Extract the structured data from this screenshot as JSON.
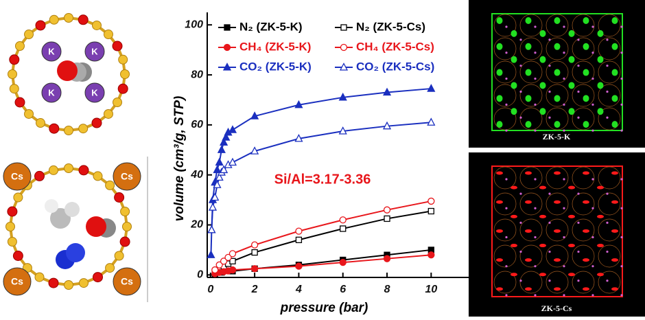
{
  "chart_data": {
    "type": "line",
    "xlabel": "pressure (bar)",
    "ylabel": "volume (cm³/g, STP)",
    "annotation": "Si/Al=3.17-3.36",
    "xlim": [
      -0.15,
      11.7
    ],
    "ylim": [
      -1,
      105
    ],
    "xticks": [
      0,
      2,
      4,
      6,
      8,
      10
    ],
    "yticks": [
      0,
      20,
      40,
      60,
      80,
      100
    ],
    "series": [
      {
        "name": "N₂ (ZK-5-K)",
        "color": "#000000",
        "marker": "square",
        "filled": true,
        "x": [
          0.2,
          0.5,
          1,
          2,
          4,
          6,
          8,
          10
        ],
        "values": [
          0.5,
          1,
          1.5,
          2.5,
          4,
          6,
          8,
          10
        ]
      },
      {
        "name": "N₂ (ZK-5-Cs)",
        "color": "#000000",
        "marker": "square",
        "filled": false,
        "x": [
          0.2,
          0.4,
          0.6,
          0.8,
          1,
          2,
          4,
          6,
          8,
          10
        ],
        "values": [
          1,
          2,
          3.5,
          4.5,
          5.5,
          9,
          14,
          18.5,
          22.5,
          25.5
        ]
      },
      {
        "name": "CH₄ (ZK-5-K)",
        "color": "#e8161b",
        "marker": "circle",
        "filled": true,
        "x": [
          0.2,
          0.4,
          0.6,
          0.8,
          1,
          2,
          4,
          6,
          8,
          10
        ],
        "values": [
          0.5,
          1,
          1.3,
          1.6,
          2,
          2.5,
          3.5,
          5,
          6.5,
          8
        ]
      },
      {
        "name": "CH₄ (ZK-5-Cs)",
        "color": "#e8161b",
        "marker": "circle",
        "filled": false,
        "x": [
          0.2,
          0.4,
          0.6,
          0.8,
          1,
          2,
          4,
          6,
          8,
          10
        ],
        "values": [
          2,
          4,
          5.5,
          7,
          8.5,
          12,
          17.5,
          22,
          26,
          29.5
        ]
      },
      {
        "name": "CO₂ (ZK-5-K)",
        "color": "#1a2fbf",
        "marker": "triangle",
        "filled": true,
        "x": [
          0.02,
          0.05,
          0.1,
          0.2,
          0.3,
          0.4,
          0.5,
          0.6,
          0.7,
          0.8,
          1,
          2,
          4,
          6,
          8,
          10
        ],
        "values": [
          8,
          18,
          30,
          37,
          42,
          45,
          50,
          53,
          55,
          57,
          58,
          63.5,
          68,
          71,
          73,
          74.5
        ]
      },
      {
        "name": "CO₂ (ZK-5-Cs)",
        "color": "#1a2fbf",
        "marker": "triangle",
        "filled": false,
        "x": [
          0.05,
          0.1,
          0.2,
          0.3,
          0.4,
          0.5,
          0.6,
          0.8,
          1,
          2,
          4,
          6,
          8,
          10
        ],
        "values": [
          18,
          27,
          31,
          36,
          39,
          41,
          42,
          44,
          45,
          49.5,
          54.5,
          57.5,
          59.5,
          61
        ]
      }
    ]
  },
  "structures": [
    {
      "atoms": [
        "K",
        "K",
        "K",
        "K"
      ]
    },
    {
      "atoms": [
        "Cs",
        "Cs",
        "Cs",
        "Cs"
      ]
    }
  ],
  "snapshots": [
    {
      "label": "ZK-5-K",
      "color": "#22e022"
    },
    {
      "label": "ZK-5-Cs",
      "color": "#ff1a1a"
    }
  ]
}
